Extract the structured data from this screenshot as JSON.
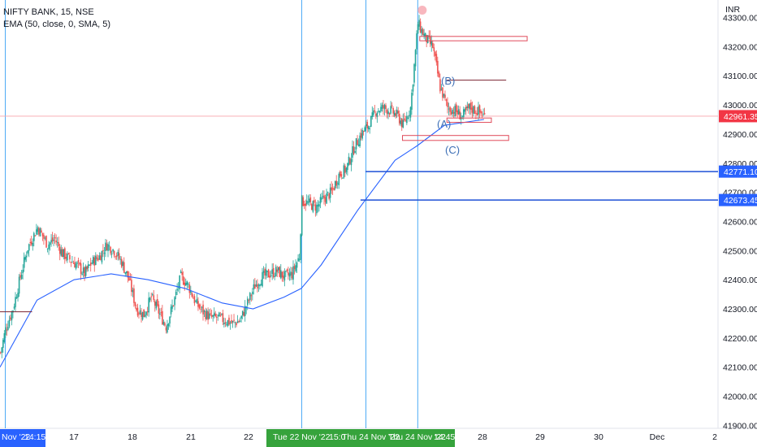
{
  "legend": {
    "symbol_line": "NIFTY BANK, 15, NSE",
    "indicator_line": "EMA (50, close, 0, SMA, 5)"
  },
  "currency": "INR",
  "colors": {
    "up": "#26a69a",
    "down": "#ef5350",
    "ema": "#2962ff",
    "vline": "#2196f3",
    "support": "#1e50d6",
    "box": "#e04a5a",
    "price_tag": "#f23645",
    "level_tag": "#2962ff",
    "time_tag": "#36a33c",
    "wave_label": "#3d6fb6"
  },
  "annotations": {
    "wave_labels": [
      "(B)",
      "(A)",
      "(C)"
    ]
  },
  "chart_data": {
    "type": "candlestick",
    "title": "NIFTY BANK, 15, NSE",
    "indicator": "EMA (50, close, 0, SMA, 5)",
    "y_ticks": [
      "43300.00",
      "43200.00",
      "43100.00",
      "43000.00",
      "42900.00",
      "42800.00",
      "42700.00",
      "42600.00",
      "42500.00",
      "42400.00",
      "42300.00",
      "42200.00",
      "42100.00",
      "42000.00",
      "41900.00"
    ],
    "ylim": [
      41890,
      43360
    ],
    "x_labels": [
      "17",
      "18",
      "21",
      "22",
      "28",
      "29",
      "30",
      "Dec",
      "2"
    ],
    "time_tags": [
      "Tue 22 Nov '22",
      "15:0",
      "Thu 24 Nov '22",
      "Thu 24 Nov '22",
      "14:45"
    ],
    "left_time_tag": [
      "Nov '22",
      "14:15"
    ],
    "price_tags": [
      {
        "label": "42961.35",
        "value": 42961.35,
        "kind": "current"
      },
      {
        "label": "42771.10",
        "value": 42771.1,
        "kind": "level"
      },
      {
        "label": "42673.45",
        "value": 42673.45,
        "kind": "level"
      }
    ],
    "candle_anchors_close": [
      [
        0,
        42150
      ],
      [
        4,
        42230
      ],
      [
        10,
        42300
      ],
      [
        16,
        42410
      ],
      [
        22,
        42510
      ],
      [
        30,
        42580
      ],
      [
        38,
        42520
      ],
      [
        44,
        42540
      ],
      [
        50,
        42490
      ],
      [
        56,
        42470
      ],
      [
        62,
        42450
      ],
      [
        68,
        42420
      ],
      [
        74,
        42460
      ],
      [
        80,
        42480
      ],
      [
        86,
        42520
      ],
      [
        92,
        42500
      ],
      [
        98,
        42460
      ],
      [
        104,
        42400
      ],
      [
        110,
        42300
      ],
      [
        116,
        42280
      ],
      [
        122,
        42340
      ],
      [
        128,
        42290
      ],
      [
        134,
        42240
      ],
      [
        140,
        42320
      ],
      [
        146,
        42410
      ],
      [
        152,
        42380
      ],
      [
        158,
        42320
      ],
      [
        164,
        42290
      ],
      [
        170,
        42270
      ],
      [
        176,
        42270
      ],
      [
        182,
        42260
      ],
      [
        188,
        42250
      ],
      [
        194,
        42260
      ],
      [
        200,
        42320
      ],
      [
        206,
        42380
      ],
      [
        212,
        42410
      ],
      [
        218,
        42420
      ],
      [
        224,
        42430
      ],
      [
        230,
        42410
      ],
      [
        236,
        42420
      ],
      [
        242,
        42480
      ],
      [
        244,
        42670
      ],
      [
        250,
        42660
      ],
      [
        256,
        42650
      ],
      [
        262,
        42680
      ],
      [
        268,
        42700
      ],
      [
        274,
        42760
      ],
      [
        280,
        42780
      ],
      [
        286,
        42850
      ],
      [
        292,
        42900
      ],
      [
        298,
        42930
      ],
      [
        304,
        42980
      ],
      [
        310,
        42990
      ],
      [
        316,
        42980
      ],
      [
        322,
        42960
      ],
      [
        326,
        42930
      ],
      [
        332,
        42990
      ],
      [
        338,
        43280
      ],
      [
        344,
        43230
      ],
      [
        350,
        43200
      ],
      [
        356,
        43060
      ],
      [
        362,
        42990
      ],
      [
        368,
        42980
      ],
      [
        374,
        42960
      ],
      [
        380,
        42990
      ],
      [
        386,
        42980
      ],
      [
        392,
        42961.35
      ]
    ],
    "ema_points": [
      [
        0,
        42100
      ],
      [
        30,
        42330
      ],
      [
        60,
        42400
      ],
      [
        90,
        42420
      ],
      [
        120,
        42400
      ],
      [
        150,
        42370
      ],
      [
        180,
        42320
      ],
      [
        205,
        42300
      ],
      [
        230,
        42340
      ],
      [
        244,
        42370
      ],
      [
        260,
        42450
      ],
      [
        290,
        42640
      ],
      [
        320,
        42810
      ],
      [
        338,
        42860
      ],
      [
        360,
        42930
      ],
      [
        392,
        42950
      ]
    ],
    "vertical_lines_x": [
      4,
      244,
      296,
      338
    ],
    "horizontal_levels": [
      {
        "value": 42771.1,
        "from_x": 296
      },
      {
        "value": 42673.45,
        "from_x": 292
      }
    ],
    "short_lines": [
      {
        "value": 42290,
        "x0": 0,
        "x1": 26
      },
      {
        "value": 43085,
        "x0": 362,
        "x1": 410
      }
    ],
    "boxes": [
      {
        "x0": 340,
        "x1": 427,
        "y0": 43220,
        "y1": 43235
      },
      {
        "x0": 362,
        "x1": 398,
        "y0": 42940,
        "y1": 42955
      },
      {
        "x0": 326,
        "x1": 412,
        "y0": 42878,
        "y1": 42895
      }
    ],
    "peak_marker": {
      "x": 342,
      "value": 43325
    }
  }
}
